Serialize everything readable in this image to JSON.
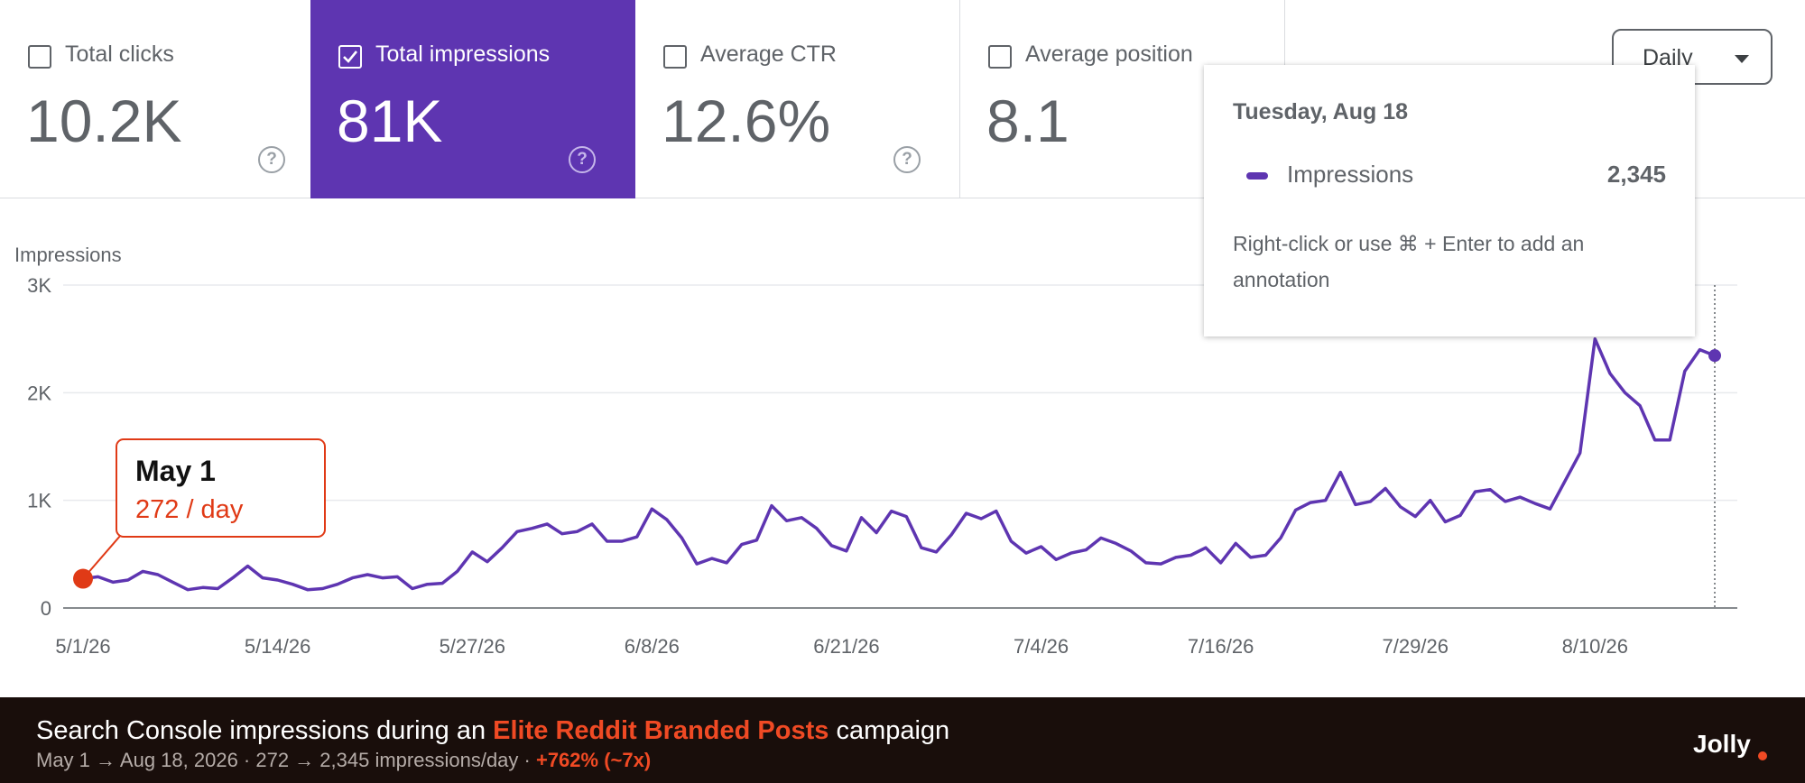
{
  "metrics": [
    {
      "label": "Total clicks",
      "value": "10.2K",
      "checked": false
    },
    {
      "label": "Total impressions",
      "value": "81K",
      "checked": true
    },
    {
      "label": "Average CTR",
      "value": "12.6%",
      "checked": false
    },
    {
      "label": "Average position",
      "value": "8.1",
      "checked": false
    }
  ],
  "granularity": {
    "label": "Daily"
  },
  "tooltip": {
    "date": "Tuesday, Aug 18",
    "series": "Impressions",
    "value": "2,345",
    "hint": "Right-click or use ⌘ + Enter to add an annotation"
  },
  "callout": {
    "title": "May 1",
    "subtitle": "272 / day"
  },
  "footer": {
    "title_pre": "Search Console impressions during an ",
    "title_highlight": "Elite Reddit Branded Posts",
    "title_post": " campaign",
    "subtitle_main": "May 1 → Aug 18, 2026   ·   272 → 2,345 impressions/day   ·   ",
    "subtitle_pct": "+762% (~7x)",
    "brand": "Jolly"
  },
  "colors": {
    "accent": "#5e35b1",
    "highlight": "#f04a24",
    "footer_bg": "#190e0b",
    "grid": "#e8eaed"
  },
  "chart_data": {
    "type": "line",
    "ylabel": "Impressions",
    "ylim": [
      0,
      3000
    ],
    "y_ticks": [
      0,
      1000,
      2000,
      3000
    ],
    "y_tick_labels": [
      "0",
      "1K",
      "2K",
      "3K"
    ],
    "x_tick_labels": [
      "5/1/26",
      "5/14/26",
      "5/27/26",
      "6/8/26",
      "6/21/26",
      "7/4/26",
      "7/16/26",
      "7/29/26",
      "8/10/26"
    ],
    "x_tick_indices": [
      0,
      13,
      26,
      38,
      51,
      64,
      76,
      89,
      101
    ],
    "grid": true,
    "series": [
      {
        "name": "Impressions",
        "color": "#5e35b1",
        "x": [
          "5/1",
          "5/2",
          "5/3",
          "5/4",
          "5/5",
          "5/6",
          "5/7",
          "5/8",
          "5/9",
          "5/10",
          "5/11",
          "5/12",
          "5/13",
          "5/14",
          "5/15",
          "5/16",
          "5/17",
          "5/18",
          "5/19",
          "5/20",
          "5/21",
          "5/22",
          "5/23",
          "5/24",
          "5/25",
          "5/26",
          "5/27",
          "5/28",
          "5/29",
          "5/30",
          "5/31",
          "6/1",
          "6/2",
          "6/3",
          "6/4",
          "6/5",
          "6/6",
          "6/7",
          "6/8",
          "6/9",
          "6/10",
          "6/11",
          "6/12",
          "6/13",
          "6/14",
          "6/15",
          "6/16",
          "6/17",
          "6/18",
          "6/19",
          "6/20",
          "6/21",
          "6/22",
          "6/23",
          "6/24",
          "6/25",
          "6/26",
          "6/27",
          "6/28",
          "6/29",
          "6/30",
          "7/1",
          "7/2",
          "7/3",
          "7/4",
          "7/5",
          "7/6",
          "7/7",
          "7/8",
          "7/9",
          "7/10",
          "7/11",
          "7/12",
          "7/13",
          "7/14",
          "7/15",
          "7/16",
          "7/17",
          "7/18",
          "7/19",
          "7/20",
          "7/21",
          "7/22",
          "7/23",
          "7/24",
          "7/25",
          "7/26",
          "7/27",
          "7/28",
          "7/29",
          "7/30",
          "7/31",
          "8/1",
          "8/2",
          "8/3",
          "8/4",
          "8/5",
          "8/6",
          "8/7",
          "8/8",
          "8/9",
          "8/10",
          "8/11",
          "8/12",
          "8/13",
          "8/14",
          "8/15",
          "8/16",
          "8/17",
          "8/18"
        ],
        "values": [
          272,
          290,
          240,
          260,
          340,
          310,
          240,
          170,
          190,
          180,
          280,
          390,
          280,
          260,
          220,
          170,
          180,
          220,
          280,
          310,
          280,
          290,
          180,
          220,
          230,
          340,
          520,
          430,
          560,
          710,
          740,
          780,
          690,
          710,
          780,
          620,
          620,
          660,
          920,
          820,
          650,
          410,
          460,
          420,
          590,
          630,
          950,
          810,
          840,
          740,
          580,
          530,
          840,
          700,
          900,
          850,
          560,
          520,
          680,
          880,
          830,
          900,
          620,
          510,
          570,
          450,
          510,
          540,
          650,
          600,
          530,
          420,
          410,
          470,
          490,
          560,
          420,
          600,
          470,
          490,
          650,
          910,
          980,
          1000,
          1260,
          960,
          990,
          1110,
          940,
          850,
          1000,
          800,
          860,
          1080,
          1100,
          990,
          1030,
          970,
          920,
          1180,
          1440,
          2500,
          2180,
          2000,
          1880,
          1560,
          1560,
          2200,
          2400,
          2345
        ]
      }
    ],
    "highlighted_points": [
      {
        "x": "5/1",
        "y": 272
      },
      {
        "x": "8/18",
        "y": 2345
      }
    ]
  }
}
